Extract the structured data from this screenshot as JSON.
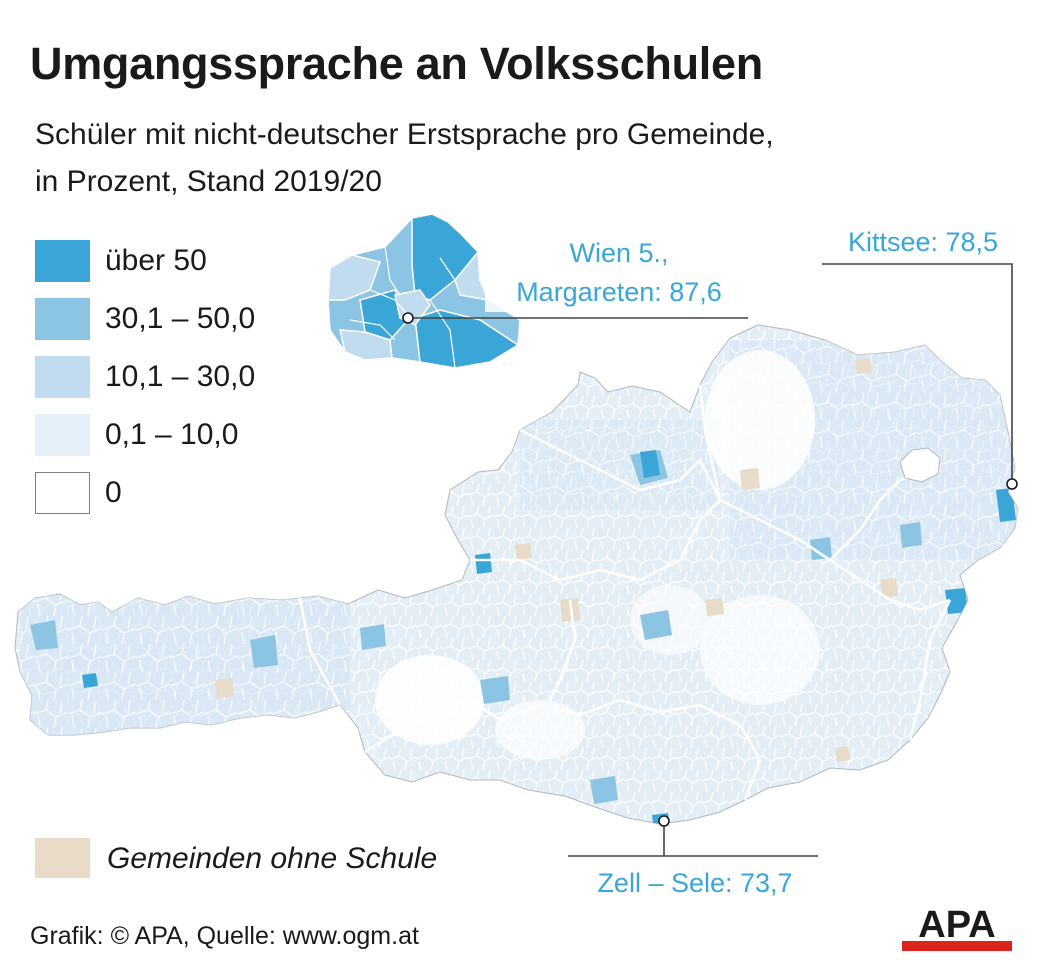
{
  "title": "Umgangssprache an Volksschulen",
  "subtitle": {
    "line1": "Schüler mit nicht-deutscher Erstsprache pro Gemeinde,",
    "line2": "in Prozent, Stand 2019/20"
  },
  "legend": [
    {
      "label": "über 50",
      "color": "#3aa6d8"
    },
    {
      "label": "30,1 – 50,0",
      "color": "#8cc4e3"
    },
    {
      "label": "10,1 – 30,0",
      "color": "#c2dcef"
    },
    {
      "label": "0,1 – 10,0",
      "color": "#e6f0f8"
    },
    {
      "label": "0",
      "color": "#ffffff"
    }
  ],
  "no_school": {
    "label": "Gemeinden ohne Schule",
    "color": "#e8dcc8"
  },
  "callouts": {
    "wien_line1": "Wien 5.,",
    "wien_line2": "Margareten: 87,6",
    "kittsee": "Kittsee: 78,5",
    "zell": "Zell – Sele: 73,7"
  },
  "credit": "Grafik: © APA, Quelle: www.ogm.at",
  "logo": {
    "text": "APA",
    "color_text": "#1a1a1a",
    "color_accent": "#d9251c"
  },
  "colors": {
    "accent": "#3aa6d8",
    "border": "#808080",
    "callout_line": "#444444"
  }
}
